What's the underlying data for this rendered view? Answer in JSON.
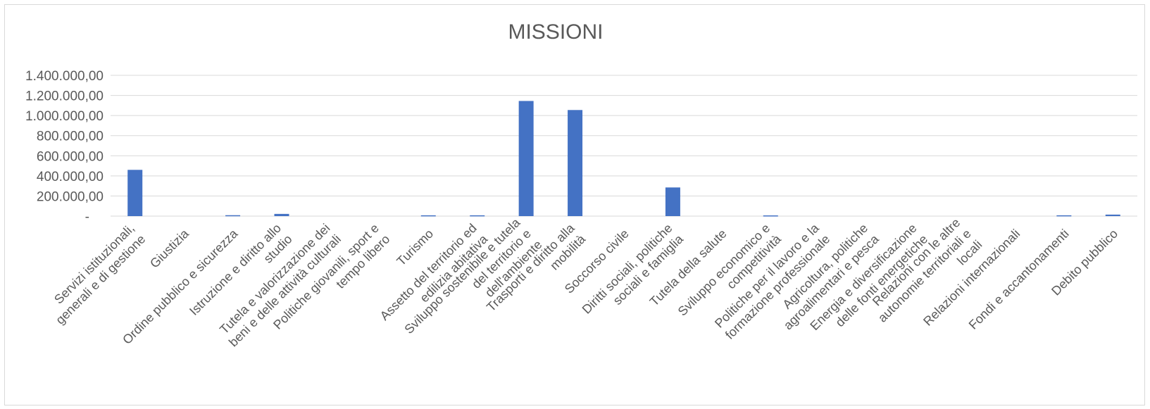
{
  "chart_data": {
    "type": "bar",
    "title": "MISSIONI",
    "xlabel": "",
    "ylabel": "",
    "ylim": [
      0,
      1400000
    ],
    "grid": true,
    "legend": "none",
    "bar_color": "#4472c4",
    "y_ticks": [
      {
        "value": 0,
        "label": "-"
      },
      {
        "value": 200000,
        "label": "200.000,00"
      },
      {
        "value": 400000,
        "label": "400.000,00"
      },
      {
        "value": 600000,
        "label": "600.000,00"
      },
      {
        "value": 800000,
        "label": "800.000,00"
      },
      {
        "value": 1000000,
        "label": "1.000.000,00"
      },
      {
        "value": 1200000,
        "label": "1.200.000,00"
      },
      {
        "value": 1400000,
        "label": "1.400.000,00"
      }
    ],
    "categories": [
      [
        "Servizi istituzionali,",
        "generali e di gestione"
      ],
      [
        "Giustizia"
      ],
      [
        "Ordine pubblico e sicurezza"
      ],
      [
        "Istruzione e diritto allo",
        "studio"
      ],
      [
        "Tutela e valorizzazione dei",
        "beni e delle attività culturali"
      ],
      [
        "Politiche giovanili, sport e",
        "tempo libero"
      ],
      [
        "Turismo"
      ],
      [
        "Assetto del territorio ed",
        "edilizia abitativa"
      ],
      [
        "Sviluppo sostenibile e tutela",
        "del territorio e",
        "dell'ambiente"
      ],
      [
        "Trasporti e diritto alla",
        "mobilità"
      ],
      [
        "Soccorso civile"
      ],
      [
        "Diritti sociali, politiche",
        "sociali e famiglia"
      ],
      [
        "Tutela della salute"
      ],
      [
        "Sviluppo economico e",
        "competitività"
      ],
      [
        "Politiche per il lavoro e la",
        "formazione professionale"
      ],
      [
        "Agricoltura, politiche",
        "agroalimentari e pesca"
      ],
      [
        "Energia e diversificazione",
        "delle fonti energetiche"
      ],
      [
        "Relazioni con le altre",
        "autonomie territoriali e",
        "locali"
      ],
      [
        "Relazioni internazionali"
      ],
      [
        "Fondi e accantonamenti"
      ],
      [
        "Debito pubblico"
      ]
    ],
    "values": [
      460000,
      0,
      9000,
      22000,
      0,
      0,
      8000,
      8000,
      1145000,
      1055000,
      0,
      285000,
      0,
      7000,
      0,
      0,
      0,
      0,
      0,
      8000,
      15000
    ]
  }
}
